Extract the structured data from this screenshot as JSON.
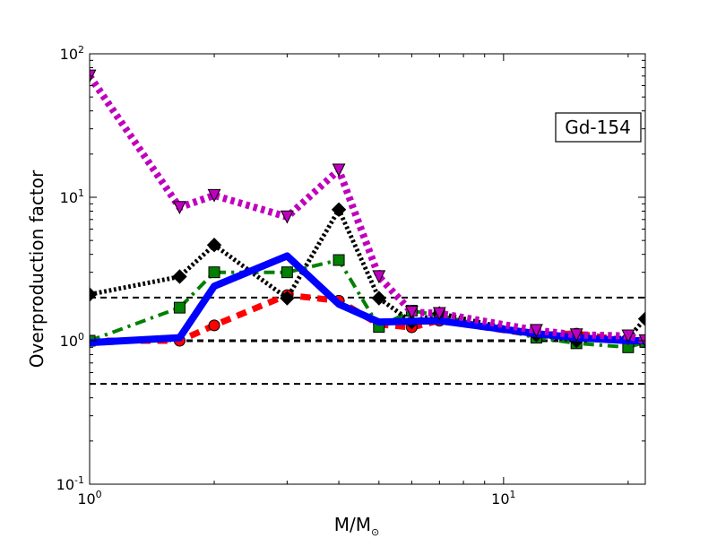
{
  "chart_data": {
    "type": "line",
    "xscale": "log",
    "yscale": "log",
    "xlim": [
      1,
      22
    ],
    "ylim": [
      0.1,
      100
    ],
    "xlabel": "M/M",
    "xlabel_sub": "⊙",
    "ylabel": "Overproduction factor",
    "annotation": "Gd-154",
    "x_ticks": [
      {
        "value": 1,
        "base": "10",
        "exp": "0"
      },
      {
        "value": 10,
        "base": "10",
        "exp": "1"
      }
    ],
    "y_ticks": [
      {
        "value": 0.1,
        "base": "10",
        "exp": "-1"
      },
      {
        "value": 1,
        "base": "10",
        "exp": "0"
      },
      {
        "value": 10,
        "base": "10",
        "exp": "1"
      },
      {
        "value": 100,
        "base": "10",
        "exp": "2"
      }
    ],
    "reference_lines": [
      {
        "y": 2,
        "style": "dashed",
        "color": "#000000",
        "width": 2
      },
      {
        "y": 1,
        "style": "dashed",
        "color": "#000000",
        "width": 3
      },
      {
        "y": 0.5,
        "style": "dashed",
        "color": "#000000",
        "width": 2
      }
    ],
    "series": [
      {
        "color": "#ff0000",
        "dash": "dashed",
        "width": 7,
        "marker": "circle",
        "points": [
          [
            1,
            1.0
          ],
          [
            1.65,
            1.0
          ],
          [
            2,
            1.28
          ],
          [
            3,
            2.08
          ],
          [
            4,
            1.9
          ],
          [
            5,
            1.3
          ],
          [
            6,
            1.24
          ],
          [
            7,
            1.38
          ],
          [
            12,
            1.1
          ],
          [
            15,
            1.12
          ],
          [
            20,
            1.0
          ],
          [
            22,
            1.0
          ]
        ]
      },
      {
        "color": "#008000",
        "dash": "dashdot",
        "width": 4,
        "marker": "square",
        "points": [
          [
            1,
            1.0
          ],
          [
            1.65,
            1.7
          ],
          [
            2,
            3.0
          ],
          [
            3,
            3.0
          ],
          [
            4,
            3.65
          ],
          [
            5,
            1.25
          ],
          [
            6,
            1.62
          ],
          [
            7,
            1.5
          ],
          [
            12,
            1.05
          ],
          [
            15,
            0.96
          ],
          [
            20,
            0.9
          ],
          [
            22,
            0.98
          ]
        ]
      },
      {
        "color": "#000000",
        "dash": "dotted",
        "width": 5,
        "marker": "diamond",
        "points": [
          [
            1,
            2.1
          ],
          [
            1.65,
            2.8
          ],
          [
            2,
            4.65
          ],
          [
            3,
            1.98
          ],
          [
            4,
            8.2
          ],
          [
            5,
            1.98
          ],
          [
            6,
            1.35
          ],
          [
            7,
            1.55
          ],
          [
            12,
            1.1
          ],
          [
            15,
            1.0
          ],
          [
            20,
            1.05
          ],
          [
            22,
            1.42
          ]
        ]
      },
      {
        "color": "#0000ff",
        "dash": "solid",
        "width": 8,
        "marker": "none",
        "points": [
          [
            1,
            0.97
          ],
          [
            1.65,
            1.05
          ],
          [
            2,
            2.4
          ],
          [
            3,
            3.9
          ],
          [
            4,
            1.8
          ],
          [
            5,
            1.35
          ],
          [
            7,
            1.38
          ],
          [
            12,
            1.12
          ],
          [
            15,
            1.05
          ],
          [
            20,
            1.0
          ],
          [
            22,
            1.0
          ]
        ]
      },
      {
        "color": "#bf00bf",
        "dash": "dotted",
        "width": 8,
        "marker": "triangle-down",
        "points": [
          [
            1,
            70
          ],
          [
            1.65,
            8.5
          ],
          [
            2,
            10.3
          ],
          [
            3,
            7.3
          ],
          [
            4,
            15.5
          ],
          [
            5,
            2.8
          ],
          [
            6,
            1.58
          ],
          [
            7,
            1.55
          ],
          [
            12,
            1.18
          ],
          [
            15,
            1.1
          ],
          [
            20,
            1.08
          ],
          [
            22,
            1.0
          ]
        ]
      }
    ]
  }
}
